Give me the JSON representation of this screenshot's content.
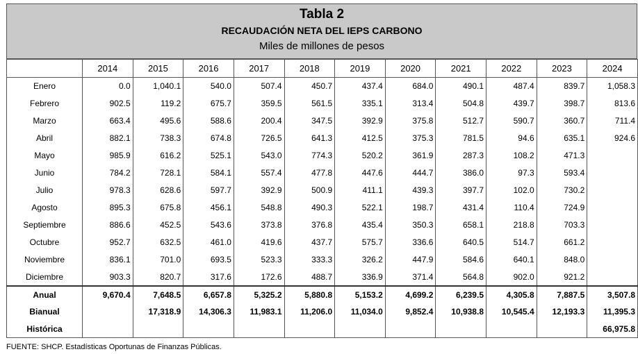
{
  "header": {
    "title": "Tabla 2",
    "subtitle": "RECAUDACIÓN NETA DEL IEPS CARBONO",
    "units": "Miles de millones de pesos"
  },
  "table": {
    "columns": [
      "2014",
      "2015",
      "2016",
      "2017",
      "2018",
      "2019",
      "2020",
      "2021",
      "2022",
      "2023",
      "2024"
    ],
    "rows": [
      [
        "Enero",
        "0.0",
        "1,040.1",
        "540.0",
        "507.4",
        "450.7",
        "437.4",
        "684.0",
        "490.1",
        "487.4",
        "839.7",
        "1,058.3"
      ],
      [
        "Febrero",
        "902.5",
        "119.2",
        "675.7",
        "359.5",
        "561.5",
        "335.1",
        "313.4",
        "504.8",
        "439.7",
        "398.7",
        "813.6"
      ],
      [
        "Marzo",
        "663.4",
        "495.6",
        "588.6",
        "200.4",
        "347.5",
        "392.9",
        "375.8",
        "512.7",
        "590.7",
        "360.7",
        "711.4"
      ],
      [
        "Abril",
        "882.1",
        "738.3",
        "674.8",
        "726.5",
        "641.3",
        "412.5",
        "375.3",
        "781.5",
        "94.6",
        "635.1",
        "924.6"
      ],
      [
        "Mayo",
        "985.9",
        "616.2",
        "525.1",
        "543.0",
        "774.3",
        "520.2",
        "361.9",
        "287.3",
        "108.2",
        "471.3",
        null
      ],
      [
        "Junio",
        "784.2",
        "728.1",
        "584.1",
        "557.4",
        "477.8",
        "447.6",
        "444.7",
        "386.0",
        "97.3",
        "593.4",
        null
      ],
      [
        "Julio",
        "978.3",
        "628.6",
        "597.7",
        "392.9",
        "500.9",
        "411.1",
        "439.3",
        "397.7",
        "102.0",
        "730.2",
        null
      ],
      [
        "Agosto",
        "895.3",
        "675.8",
        "456.1",
        "548.8",
        "490.3",
        "522.1",
        "198.7",
        "431.4",
        "110.4",
        "724.9",
        null
      ],
      [
        "Septiembre",
        "886.6",
        "452.5",
        "543.6",
        "373.8",
        "376.8",
        "435.4",
        "350.3",
        "658.1",
        "218.8",
        "703.3",
        null
      ],
      [
        "Octubre",
        "952.7",
        "632.5",
        "461.0",
        "419.6",
        "437.7",
        "575.7",
        "336.6",
        "640.5",
        "514.7",
        "661.2",
        null
      ],
      [
        "Noviembre",
        "836.1",
        "701.0",
        "693.5",
        "523.3",
        "333.3",
        "326.2",
        "447.9",
        "584.6",
        "640.1",
        "848.0",
        null
      ],
      [
        "Diciembre",
        "903.3",
        "820.7",
        "317.6",
        "172.6",
        "488.7",
        "336.9",
        "371.4",
        "564.8",
        "902.0",
        "921.2",
        null
      ]
    ],
    "totals": [
      [
        "Anual",
        "9,670.4",
        "7,648.5",
        "6,657.8",
        "5,325.2",
        "5,880.8",
        "5,153.2",
        "4,699.2",
        "6,239.5",
        "4,305.8",
        "7,887.5",
        "3,507.8"
      ],
      [
        "Bianual",
        null,
        "17,318.9",
        "14,306.3",
        "11,983.1",
        "11,206.0",
        "11,034.0",
        "9,852.4",
        "10,938.8",
        "10,545.4",
        "12,193.3",
        "11,395.3"
      ],
      [
        "Histórica",
        null,
        null,
        null,
        null,
        null,
        null,
        null,
        null,
        null,
        null,
        "66,975.8"
      ]
    ]
  },
  "footer": "FUENTE: SHCP. Estadísticas Oportunas de Finanzas Públicas."
}
